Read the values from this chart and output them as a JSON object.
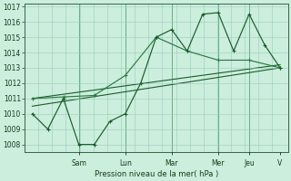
{
  "xlabel": "Pression niveau de la mer( hPa )",
  "ylim": [
    1007.5,
    1017.2
  ],
  "yticks": [
    1008,
    1009,
    1010,
    1011,
    1012,
    1013,
    1014,
    1015,
    1016,
    1017
  ],
  "day_labels": [
    "Sam",
    "Lun",
    "Mar",
    "Mer",
    "Jeu",
    "V"
  ],
  "bg_color": "#cceedd",
  "grid_color": "#99ccbb",
  "line_color_dark": "#1a5c2a",
  "line_color_med": "#2d7a45",
  "n_xgrid": 18,
  "series_zigzag": {
    "x": [
      0,
      1,
      2,
      3,
      4,
      5,
      6,
      7,
      8,
      9,
      10,
      11,
      12,
      13,
      14,
      15,
      16
    ],
    "y": [
      1010,
      1009,
      1011,
      1008,
      1008,
      1009.5,
      1010,
      1012,
      1015,
      1015.5,
      1014.1,
      1016.5,
      1016.6,
      1014.1,
      1016.5,
      1014.5,
      1013
    ]
  },
  "series_smooth": {
    "x": [
      0,
      2,
      4,
      6,
      8,
      10,
      12,
      14,
      16
    ],
    "y": [
      1011,
      1011.1,
      1011.2,
      1012.5,
      1015,
      1014.1,
      1013.5,
      1013.5,
      1013
    ]
  },
  "series_trend1": {
    "x": [
      0,
      16
    ],
    "y": [
      1011,
      1013.2
    ]
  },
  "series_trend2": {
    "x": [
      0,
      16
    ],
    "y": [
      1010.5,
      1013.0
    ]
  },
  "day_tick_x": [
    3,
    6,
    9,
    12,
    14,
    16
  ],
  "vert_line_x": [
    3,
    6,
    9,
    12,
    14
  ]
}
